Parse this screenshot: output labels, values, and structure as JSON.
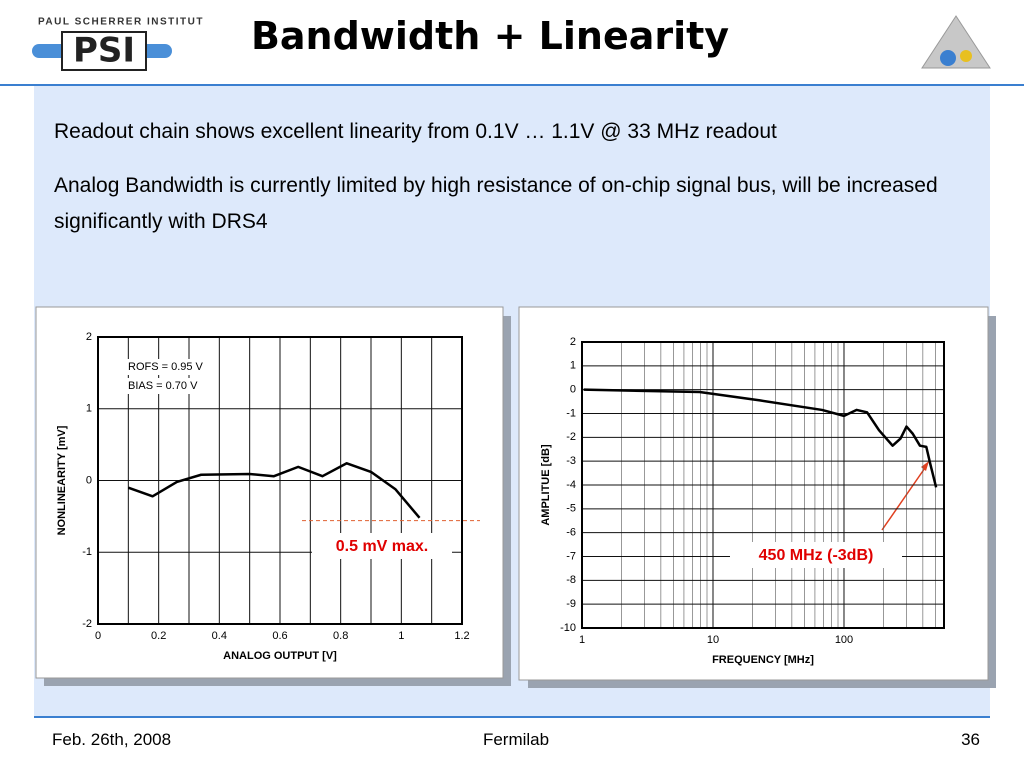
{
  "header": {
    "logo": {
      "institute": "PAUL SCHERRER INSTITUT",
      "mark": "PSI"
    },
    "title": "Bandwidth + Linearity"
  },
  "body": {
    "points": [
      "Readout chain shows excellent linearity from 0.1V … 1.1V @ 33 MHz readout",
      "Analog Bandwidth is currently limited by high resistance of on-chip signal bus, will be increased significantly with DRS4"
    ]
  },
  "chart_data": [
    {
      "type": "line",
      "x_label": "ANALOG OUTPUT [V]",
      "y_label": "NONLINEARITY [mV]",
      "x": [
        0.1,
        0.18,
        0.26,
        0.34,
        0.5,
        0.58,
        0.66,
        0.74,
        0.82,
        0.9,
        0.98,
        1.06
      ],
      "y": [
        -0.1,
        -0.22,
        -0.02,
        0.08,
        0.09,
        0.06,
        0.19,
        0.06,
        0.24,
        0.12,
        -0.12,
        -0.52
      ],
      "color": "#000000",
      "xlim": [
        0,
        1.2
      ],
      "ylim": [
        -2,
        2
      ],
      "xticks": [
        0,
        0.2,
        0.4,
        0.6,
        0.8,
        1,
        1.2
      ],
      "yticks": [
        -2,
        -1,
        0,
        1,
        2
      ],
      "grid": true,
      "annotations": [
        "ROFS = 0.95 V",
        "BIAS = 0.70 V"
      ],
      "limit_line": -0.56,
      "callout": "0.5 mV max."
    },
    {
      "type": "line",
      "x_label": "FREQUENCY [MHz]",
      "y_label": "AMPLITUE [dB]",
      "xscale": "log",
      "x": [
        1.03,
        7.9,
        22.8,
        68,
        100,
        125,
        150,
        185,
        235,
        270,
        300,
        335,
        380,
        425,
        455,
        505
      ],
      "y": [
        0,
        -0.1,
        -0.45,
        -0.85,
        -1.1,
        -0.85,
        -0.95,
        -1.7,
        -2.35,
        -2.05,
        -1.55,
        -1.85,
        -2.35,
        -2.4,
        -3.1,
        -4.1
      ],
      "color": "#000000",
      "xlim": [
        1,
        580
      ],
      "ylim": [
        -10,
        2
      ],
      "xticks": [
        1,
        10,
        100
      ],
      "yticks": [
        -10,
        -9,
        -8,
        -7,
        -6,
        -5,
        -4,
        -3,
        -2,
        -1,
        0,
        1,
        2
      ],
      "grid": true,
      "callout": "450 MHz (-3dB)"
    }
  ],
  "footer": {
    "date": "Feb. 26th, 2008",
    "venue": "Fermilab",
    "page": "36"
  }
}
